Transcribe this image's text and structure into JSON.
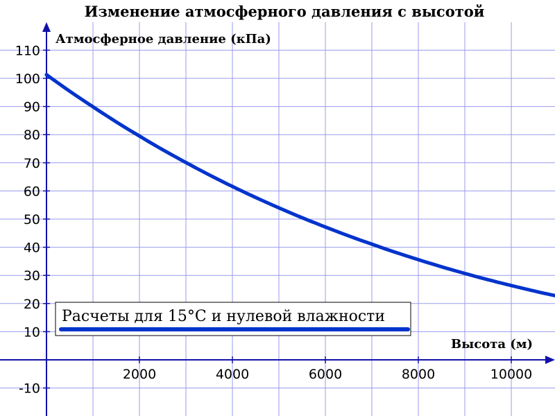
{
  "chart_data": {
    "type": "line",
    "title": "Изменение атмосферного давления с высотой",
    "xlabel": "Высота (м)",
    "ylabel": "Атмосферное давление (кПа)",
    "xlim": [
      0,
      11000
    ],
    "ylim": [
      -15,
      120
    ],
    "grid": true,
    "legend": "bottom-left",
    "x_ticks": [
      2000,
      4000,
      6000,
      8000,
      10000
    ],
    "y_ticks": [
      -10,
      10,
      20,
      30,
      40,
      50,
      60,
      70,
      80,
      90,
      100,
      110
    ],
    "series": [
      {
        "name": "Расчеты для 15°C и нулевой влажности",
        "color": "#0033cc",
        "x": [
          0,
          1000,
          2000,
          3000,
          4000,
          5000,
          6000,
          7000,
          8000,
          9000,
          10000,
          11000
        ],
        "y": [
          101.3,
          89.9,
          79.5,
          70.1,
          61.6,
          54.0,
          47.2,
          41.1,
          35.6,
          30.7,
          26.4,
          22.6
        ]
      }
    ]
  }
}
